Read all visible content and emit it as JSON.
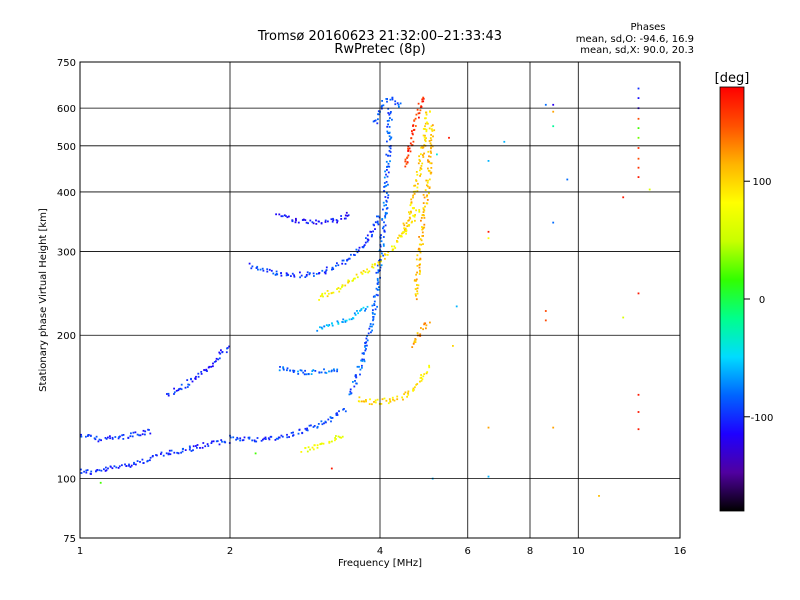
{
  "chart_data": {
    "type": "scatter",
    "title": "Tromsø 20160623 21:32:00–21:33:43",
    "subtitle": "RwPretec (8p)",
    "xlabel": "Frequency [MHz]",
    "ylabel": "Stationary phase Virtual Height [km]",
    "x_scale": "log",
    "y_scale": "log",
    "xlim": [
      1,
      16
    ],
    "ylim": [
      75,
      750
    ],
    "x_ticks": [
      1,
      2,
      4,
      6,
      8,
      10,
      16
    ],
    "x_tick_labels": [
      "1",
      "2",
      "4",
      "6",
      "8",
      "10",
      "16"
    ],
    "y_ticks": [
      75,
      100,
      200,
      300,
      400,
      500,
      600,
      750
    ],
    "y_tick_labels": [
      "75",
      "100",
      "200",
      "300",
      "400",
      "500",
      "600",
      "750"
    ],
    "grid": true,
    "phase_info": {
      "heading": "Phases",
      "line_o": "mean, sd,O: -94.6, 16.9",
      "line_x": "mean, sd,X: 90.0, 20.3"
    },
    "colorbar": {
      "label": "[deg]",
      "ticks": [
        100,
        0,
        -100
      ],
      "tick_labels": [
        "100",
        "0",
        "-100"
      ],
      "range": [
        -180,
        180
      ],
      "colors": [
        "#000000",
        "#5000a0",
        "#1e00ff",
        "#0064ff",
        "#00dcff",
        "#00ff8c",
        "#32ff00",
        "#c8ff00",
        "#ffff00",
        "#ffb400",
        "#ff5000",
        "#ff0000"
      ]
    },
    "series": [
      {
        "mode": "O",
        "phase_mean": -94.6,
        "phase_sd": 16.9,
        "traces": [
          {
            "x": [
              1.0,
              1.05,
              1.1,
              1.2,
              1.3,
              1.4
            ],
            "y": [
              104,
              103,
              104,
              106,
              108,
              110
            ],
            "phase": -100
          },
          {
            "x": [
              1.0,
              1.1,
              1.2,
              1.3,
              1.4
            ],
            "y": [
              123,
              121,
              122,
              124,
              126
            ],
            "phase": -100
          },
          {
            "x": [
              1.4,
              1.5,
              1.6,
              1.7,
              1.8,
              1.9,
              2.0
            ],
            "y": [
              112,
              113,
              114,
              116,
              118,
              119,
              120
            ],
            "phase": -100
          },
          {
            "x": [
              2.0,
              2.2,
              2.4,
              2.6,
              2.8,
              3.0,
              3.2,
              3.4
            ],
            "y": [
              122,
              121,
              121,
              123,
              126,
              130,
              134,
              140
            ],
            "phase": -95
          },
          {
            "x": [
              1.5,
              1.6,
              1.7,
              1.8,
              1.9,
              2.0
            ],
            "y": [
              150,
              155,
              162,
              170,
              180,
              190
            ],
            "phase": -100
          },
          {
            "x": [
              2.2,
              2.4,
              2.6,
              2.8,
              3.0,
              3.2,
              3.4,
              3.6,
              3.8,
              4.0
            ],
            "y": [
              280,
              272,
              268,
              268,
              270,
              276,
              286,
              300,
              320,
              360
            ],
            "phase": -95
          },
          {
            "x": [
              2.5,
              2.7,
              2.9,
              3.1,
              3.3,
              3.5
            ],
            "y": [
              360,
              350,
              345,
              345,
              350,
              360
            ],
            "phase": -110
          },
          {
            "x": [
              3.5,
              3.6,
              3.7,
              3.8,
              3.9,
              4.0,
              4.1,
              4.2
            ],
            "y": [
              150,
              165,
              180,
              200,
              230,
              280,
              380,
              600
            ],
            "phase": -85
          },
          {
            "x": [
              3.9,
              4.0,
              4.1,
              4.2,
              4.3,
              4.4
            ],
            "y": [
              560,
              600,
              620,
              630,
              620,
              600
            ],
            "phase": -90
          },
          {
            "x": [
              2.5,
              2.7,
              2.9,
              3.1,
              3.3
            ],
            "y": [
              170,
              168,
              167,
              168,
              170
            ],
            "phase": -80
          },
          {
            "x": [
              3.0,
              3.2,
              3.4,
              3.6,
              3.8
            ],
            "y": [
              205,
              210,
              215,
              222,
              230
            ],
            "phase": -60
          }
        ]
      },
      {
        "mode": "X",
        "phase_mean": 90.0,
        "phase_sd": 20.3,
        "traces": [
          {
            "x": [
              3.6,
              3.8,
              4.0,
              4.2,
              4.4,
              4.6,
              4.8,
              5.0
            ],
            "y": [
              147,
              145,
              145,
              146,
              148,
              152,
              160,
              172
            ],
            "phase": 95
          },
          {
            "x": [
              4.4,
              4.5,
              4.6,
              4.7,
              4.8,
              4.9,
              5.0
            ],
            "y": [
              320,
              340,
              360,
              400,
              450,
              520,
              600
            ],
            "phase": 100
          },
          {
            "x": [
              4.7,
              4.8,
              4.9,
              5.0,
              5.05,
              5.1
            ],
            "y": [
              240,
              300,
              360,
              430,
              500,
              560
            ],
            "phase": 110
          },
          {
            "x": [
              4.5,
              4.6,
              4.7,
              4.8,
              4.9
            ],
            "y": [
              450,
              500,
              560,
              600,
              640
            ],
            "phase": 160
          },
          {
            "x": [
              3.0,
              3.3,
              3.6,
              3.9,
              4.2,
              4.5,
              4.8
            ],
            "y": [
              240,
              250,
              265,
              280,
              300,
              330,
              370
            ],
            "phase": 85
          },
          {
            "x": [
              2.8,
              3.0,
              3.2,
              3.4
            ],
            "y": [
              115,
              117,
              120,
              124
            ],
            "phase": 70
          },
          {
            "x": [
              4.6,
              4.8,
              5.0
            ],
            "y": [
              190,
              200,
              215
            ],
            "phase": 120
          }
        ]
      }
    ],
    "scatter_points": [
      {
        "x": 13.2,
        "y": 660,
        "phase": -100
      },
      {
        "x": 13.2,
        "y": 630,
        "phase": -110
      },
      {
        "x": 13.2,
        "y": 600,
        "phase": -120
      },
      {
        "x": 13.2,
        "y": 570,
        "phase": 150
      },
      {
        "x": 13.2,
        "y": 545,
        "phase": 20
      },
      {
        "x": 13.2,
        "y": 520,
        "phase": 30
      },
      {
        "x": 13.2,
        "y": 495,
        "phase": 160
      },
      {
        "x": 13.2,
        "y": 470,
        "phase": 150
      },
      {
        "x": 13.2,
        "y": 450,
        "phase": 160
      },
      {
        "x": 13.2,
        "y": 430,
        "phase": 170
      },
      {
        "x": 13.2,
        "y": 245,
        "phase": 170
      },
      {
        "x": 13.2,
        "y": 150,
        "phase": 170
      },
      {
        "x": 13.2,
        "y": 138,
        "phase": 170
      },
      {
        "x": 13.2,
        "y": 127,
        "phase": 170
      },
      {
        "x": 13.9,
        "y": 405,
        "phase": 60
      },
      {
        "x": 12.3,
        "y": 390,
        "phase": 170
      },
      {
        "x": 12.3,
        "y": 218,
        "phase": 60
      },
      {
        "x": 8.6,
        "y": 610,
        "phase": -80
      },
      {
        "x": 8.9,
        "y": 610,
        "phase": -120
      },
      {
        "x": 8.9,
        "y": 590,
        "phase": 120
      },
      {
        "x": 8.9,
        "y": 550,
        "phase": -20
      },
      {
        "x": 8.9,
        "y": 345,
        "phase": -80
      },
      {
        "x": 8.9,
        "y": 128,
        "phase": 120
      },
      {
        "x": 8.6,
        "y": 225,
        "phase": 150
      },
      {
        "x": 8.6,
        "y": 215,
        "phase": 150
      },
      {
        "x": 9.5,
        "y": 425,
        "phase": -80
      },
      {
        "x": 7.1,
        "y": 510,
        "phase": -60
      },
      {
        "x": 6.6,
        "y": 465,
        "phase": -60
      },
      {
        "x": 6.6,
        "y": 330,
        "phase": 170
      },
      {
        "x": 6.6,
        "y": 320,
        "phase": 80
      },
      {
        "x": 6.6,
        "y": 128,
        "phase": 120
      },
      {
        "x": 6.6,
        "y": 101,
        "phase": -60
      },
      {
        "x": 5.7,
        "y": 230,
        "phase": -60
      },
      {
        "x": 5.6,
        "y": 190,
        "phase": 100
      },
      {
        "x": 5.5,
        "y": 520,
        "phase": 170
      },
      {
        "x": 5.2,
        "y": 480,
        "phase": -40
      },
      {
        "x": 11.0,
        "y": 92,
        "phase": 110
      },
      {
        "x": 1.1,
        "y": 98,
        "phase": 20
      },
      {
        "x": 2.25,
        "y": 113,
        "phase": 20
      },
      {
        "x": 3.2,
        "y": 105,
        "phase": 170
      },
      {
        "x": 5.1,
        "y": 100,
        "phase": -60
      }
    ]
  }
}
